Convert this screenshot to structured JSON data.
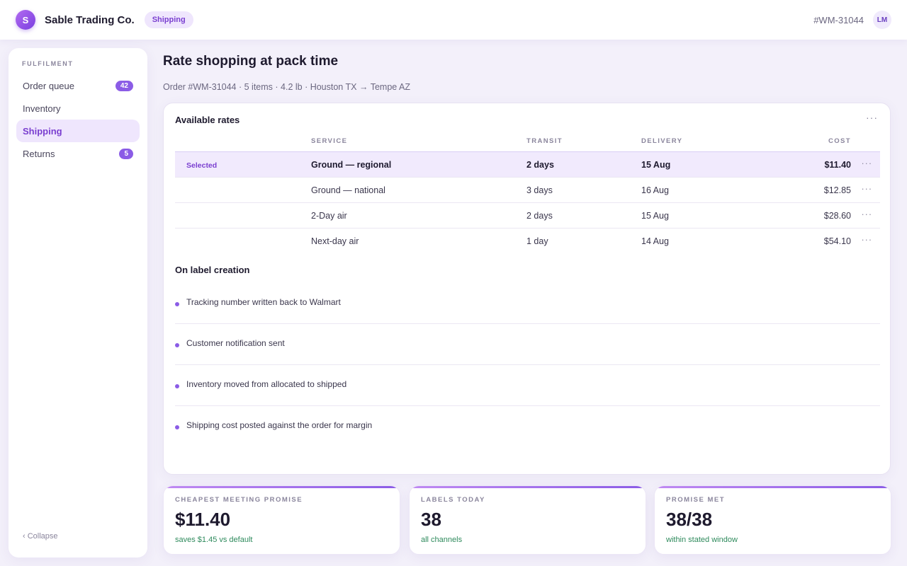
{
  "app": {
    "logo_letter": "S",
    "brand": "Sable Trading Co.",
    "section_chip": "Shipping",
    "order_ref": "#WM-31044",
    "user_initials": "LM"
  },
  "sidebar": {
    "section": "FULFILMENT",
    "items": [
      {
        "label": "Order queue",
        "badge": "42"
      },
      {
        "label": "Inventory",
        "badge": ""
      },
      {
        "label": "Shipping",
        "badge": ""
      },
      {
        "label": "Returns",
        "badge": "5"
      }
    ],
    "collapse_label": "‹ Collapse"
  },
  "main": {
    "title": "Rate shopping at pack time",
    "subtitle": "Order #WM-31044 · 5 items · 4.2 lb · Houston TX → Tempe AZ"
  },
  "rates": {
    "title": "Available rates",
    "more": "···",
    "columns": {
      "service": "SERVICE",
      "transit": "TRANSIT",
      "delivery": "DELIVERY",
      "cost": "COST"
    },
    "rows": [
      {
        "flag": "Selected",
        "service": "Ground — regional",
        "transit": "2 days",
        "delivery": "15 Aug",
        "cost": "$11.40",
        "more": "···"
      },
      {
        "flag": "",
        "service": "Ground — national",
        "transit": "3 days",
        "delivery": "16 Aug",
        "cost": "$12.85",
        "more": "···"
      },
      {
        "flag": "",
        "service": "2-Day air",
        "transit": "2 days",
        "delivery": "15 Aug",
        "cost": "$28.60",
        "more": "···"
      },
      {
        "flag": "",
        "service": "Next-day air",
        "transit": "1 day",
        "delivery": "14 Aug",
        "cost": "$54.10",
        "more": "···"
      }
    ]
  },
  "events": {
    "title": "On label creation",
    "items": [
      "Tracking number written back to Walmart",
      "Customer notification sent",
      "Inventory moved from allocated to shipped",
      "Shipping cost posted against the order for margin"
    ]
  },
  "stats": [
    {
      "label": "CHEAPEST MEETING PROMISE",
      "value": "$11.40",
      "note": "saves $1.45 vs default"
    },
    {
      "label": "LABELS TODAY",
      "value": "38",
      "note": "all channels"
    },
    {
      "label": "PROMISE MET",
      "value": "38/38",
      "note": "within stated window"
    }
  ],
  "colors": {
    "accent": "#8b5ce6",
    "accent_soft": "#efe6fd",
    "positive_text": "#2e8a5c",
    "background": "#f3f0fa"
  }
}
